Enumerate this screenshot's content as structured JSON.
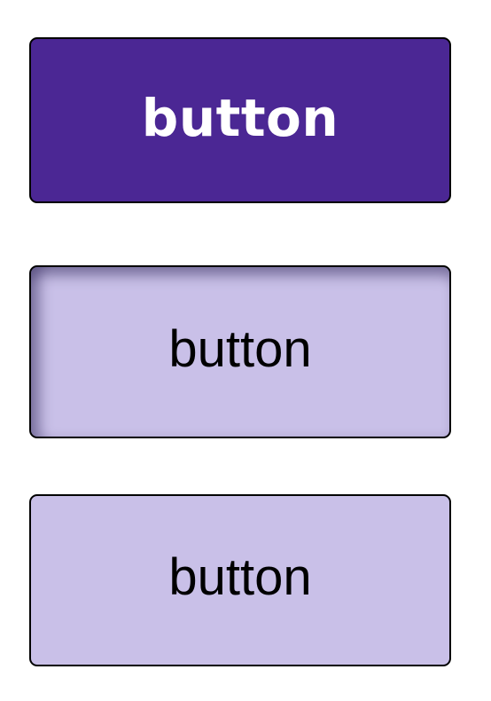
{
  "buttons": {
    "primary": {
      "label": "button"
    },
    "pressed": {
      "label": "button"
    },
    "secondary": {
      "label": "button"
    }
  },
  "colors": {
    "primary_bg": "#4b2794",
    "primary_text": "#ffffff",
    "secondary_bg": "#c9c0e8",
    "secondary_text": "#000000",
    "border": "#000000"
  }
}
